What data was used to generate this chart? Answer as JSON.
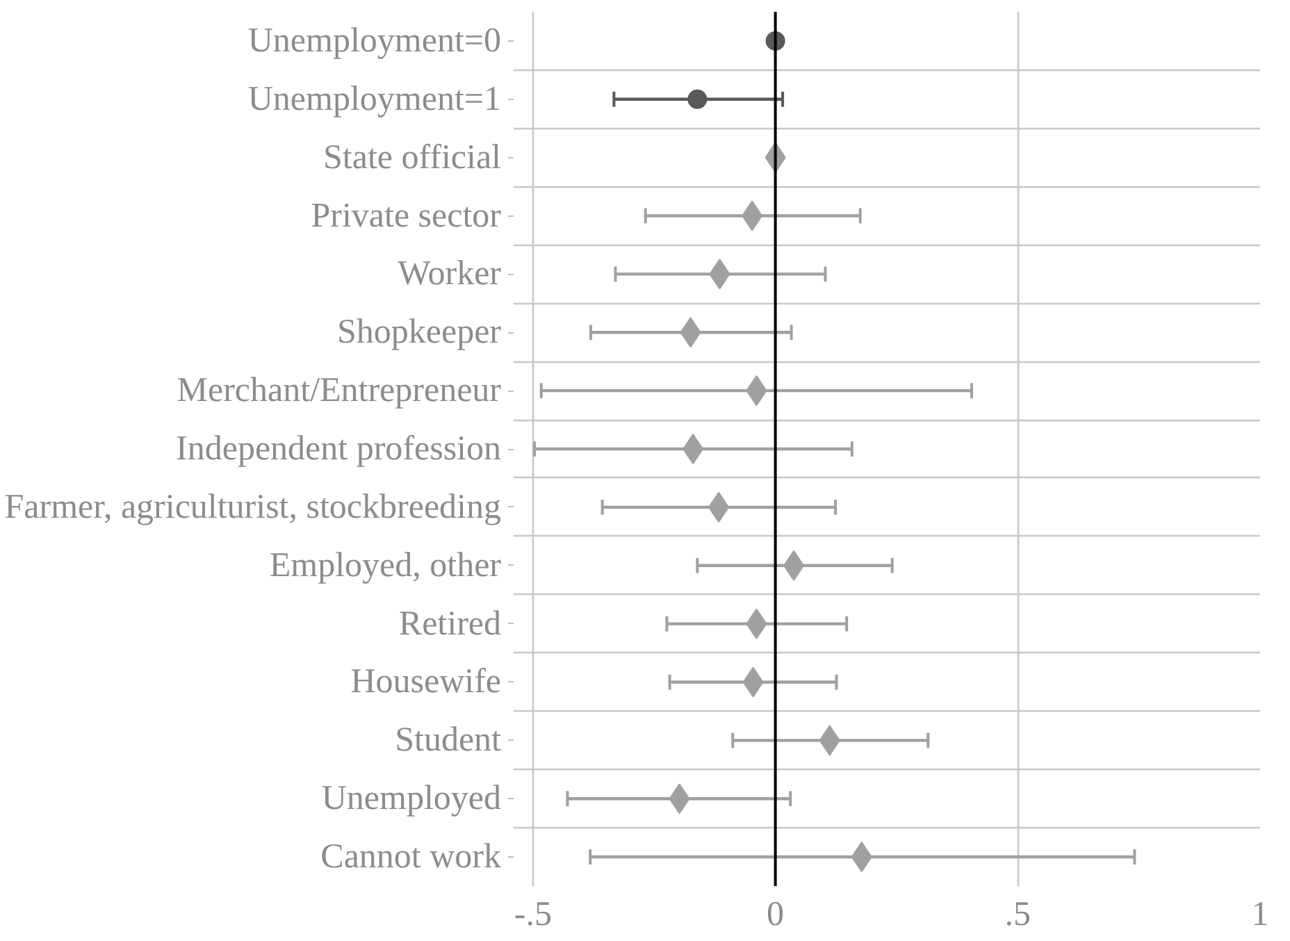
{
  "chart_data": {
    "type": "scatter",
    "orientation": "horizontal",
    "grid": true,
    "categories": [
      "Unemployment=0",
      "Unemployment=1",
      "State official",
      "Private sector",
      "Worker",
      "Shopkeeper",
      "Merchant/Entrepreneur",
      "Independent profession",
      "Farmer, agriculturist, stockbreeding",
      "Employed, other",
      "Retired",
      "Housewife",
      "Student",
      "Unemployed",
      "Cannot work"
    ],
    "xlim": [
      -0.54,
      1
    ],
    "xticks": [
      {
        "value": -0.5,
        "label": "-.5"
      },
      0,
      {
        "value": 0.5,
        "label": ".5"
      },
      1
    ],
    "ref_lines": [
      {
        "axis": "x",
        "value": 0,
        "color": "#000000"
      }
    ],
    "series": [
      {
        "color": "#595959",
        "marker": "circle",
        "values": [
          0,
          -0.161,
          null,
          null,
          null,
          null,
          null,
          null,
          null,
          null,
          null,
          null,
          null,
          null,
          null
        ],
        "errors": [
          null,
          [
            -0.333,
            0.015
          ],
          null,
          null,
          null,
          null,
          null,
          null,
          null,
          null,
          null,
          null,
          null,
          null,
          null
        ]
      },
      {
        "color": "#a0a0a0",
        "marker": "diamond",
        "values": [
          null,
          null,
          0,
          -0.048,
          -0.115,
          -0.175,
          -0.039,
          -0.17,
          -0.117,
          0.038,
          -0.039,
          -0.046,
          0.112,
          -0.198,
          0.178
        ],
        "errors": [
          null,
          null,
          null,
          [
            -0.268,
            0.175
          ],
          [
            -0.33,
            0.103
          ],
          [
            -0.381,
            0.033
          ],
          [
            -0.483,
            0.405
          ],
          [
            -0.497,
            0.158
          ],
          [
            -0.357,
            0.124
          ],
          [
            -0.161,
            0.241
          ],
          [
            -0.224,
            0.147
          ],
          [
            -0.218,
            0.126
          ],
          [
            -0.088,
            0.315
          ],
          [
            -0.429,
            0.031
          ],
          [
            -0.382,
            0.741
          ]
        ]
      }
    ]
  }
}
